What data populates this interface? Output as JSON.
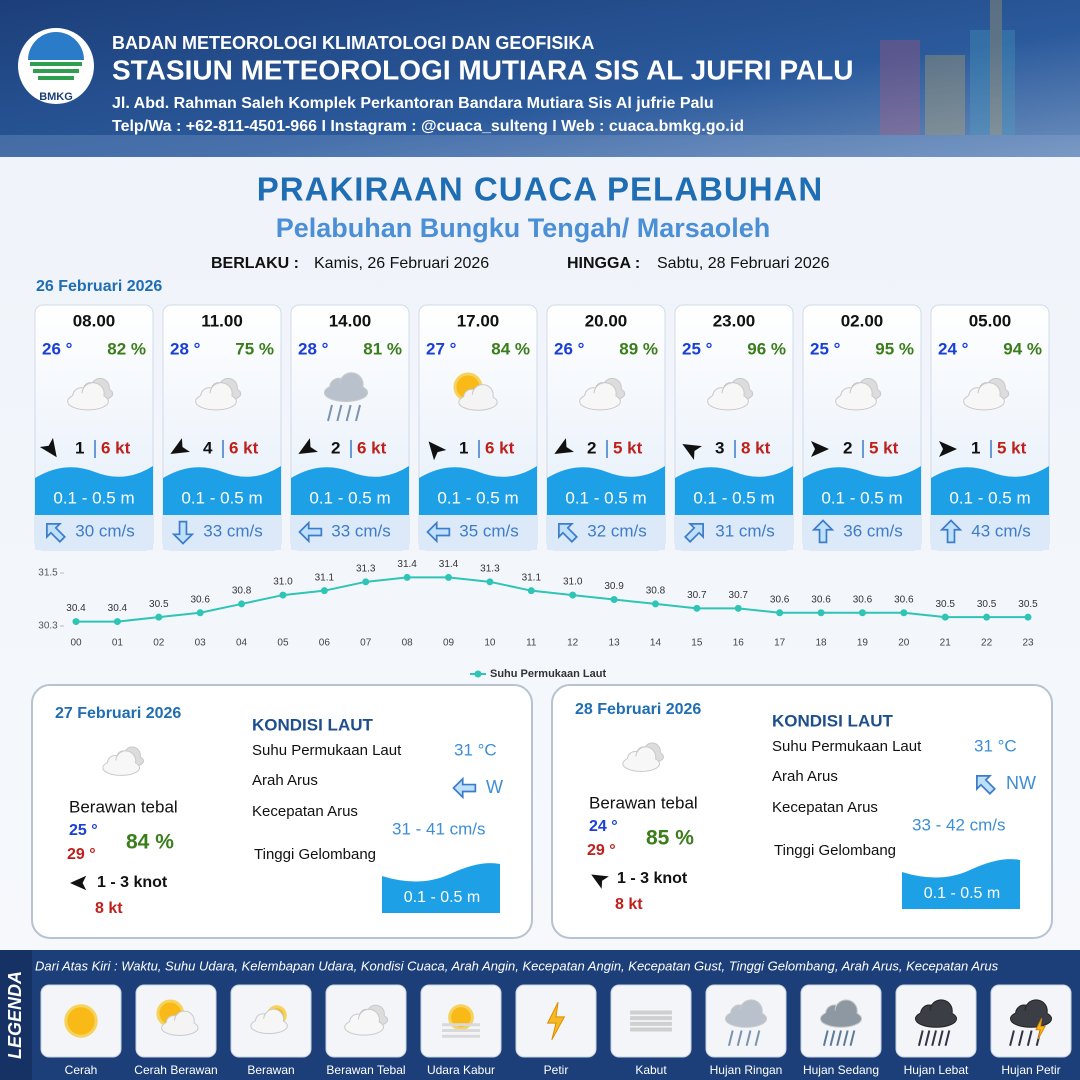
{
  "header": {
    "logo": "BMKG",
    "agency": "BADAN METEOROLOGI KLIMATOLOGI DAN GEOFISIKA",
    "station": "STASIUN METEOROLOGI MUTIARA SIS AL JUFRI PALU",
    "address": "Jl. Abd. Rahman Saleh Komplek Perkantoran Bandara Mutiara Sis Al jufrie Palu",
    "contact": "Telp/Wa : +62-811-4501-966  I  Instagram : @cuaca_sulteng  I  Web : cuaca.bmkg.go.id"
  },
  "title": "PRAKIRAAN CUACA PELABUHAN",
  "subtitle": "Pelabuhan Bungku Tengah/ Marsaoleh",
  "validity": {
    "from_label": "BERLAKU :",
    "from": "Kamis, 26 Februari 2026",
    "to_label": "HINGGA :",
    "to": "Sabtu, 28 Februari 2026"
  },
  "day1": {
    "date": "26 Februari 2026",
    "slots": [
      {
        "time": "08.00",
        "temp": "26 °",
        "humidity": "82 %",
        "wind": "1",
        "gust": "6 kt",
        "wave": "0.1 - 0.5 m",
        "current": "30 cm/s"
      },
      {
        "time": "11.00",
        "temp": "28 °",
        "humidity": "75 %",
        "wind": "4",
        "gust": "6 kt",
        "wave": "0.1 - 0.5 m",
        "current": "33 cm/s"
      },
      {
        "time": "14.00",
        "temp": "28 °",
        "humidity": "81 %",
        "wind": "2",
        "gust": "6 kt",
        "wave": "0.1 - 0.5 m",
        "current": "33 cm/s"
      },
      {
        "time": "17.00",
        "temp": "27 °",
        "humidity": "84 %",
        "wind": "1",
        "gust": "6 kt",
        "wave": "0.1 - 0.5 m",
        "current": "35 cm/s"
      },
      {
        "time": "20.00",
        "temp": "26 °",
        "humidity": "89 %",
        "wind": "2",
        "gust": "5 kt",
        "wave": "0.1 - 0.5 m",
        "current": "32 cm/s"
      },
      {
        "time": "23.00",
        "temp": "25 °",
        "humidity": "96 %",
        "wind": "3",
        "gust": "8 kt",
        "wave": "0.1 - 0.5 m",
        "current": "31 cm/s"
      },
      {
        "time": "02.00",
        "temp": "25 °",
        "humidity": "95 %",
        "wind": "2",
        "gust": "5 kt",
        "wave": "0.1 - 0.5 m",
        "current": "36 cm/s"
      },
      {
        "time": "05.00",
        "temp": "24 °",
        "humidity": "94 %",
        "wind": "1",
        "gust": "5 kt",
        "wave": "0.1 - 0.5 m",
        "current": "43 cm/s"
      }
    ]
  },
  "chart_data": {
    "type": "line",
    "categories": [
      "00",
      "01",
      "02",
      "03",
      "04",
      "05",
      "06",
      "07",
      "08",
      "09",
      "10",
      "11",
      "12",
      "13",
      "14",
      "15",
      "16",
      "17",
      "18",
      "19",
      "20",
      "21",
      "22",
      "23"
    ],
    "series": [
      {
        "name": "Suhu Permukaan Laut",
        "color": "#2ec4b6",
        "values": [
          30.4,
          30.4,
          30.5,
          30.6,
          30.8,
          31.0,
          31.1,
          31.3,
          31.4,
          31.4,
          31.3,
          31.1,
          31.0,
          30.9,
          30.8,
          30.7,
          30.7,
          30.6,
          30.6,
          30.6,
          30.6,
          30.5,
          30.5,
          30.5
        ],
        "value_labels": [
          "30.4",
          "30.4",
          "30.5",
          "30.6",
          "30.8",
          "31.0",
          "31.1",
          "31.3",
          "31.4",
          "31.4",
          "31.3",
          "31.1",
          "31.0",
          "30.9",
          "30.8",
          "30.7",
          "30.7",
          "30.6",
          "30.6",
          "30.6",
          "30.6",
          "30.5",
          "30.5",
          "30.5"
        ]
      }
    ],
    "ylim": [
      30.3,
      31.5
    ],
    "yticks": [
      30.3,
      31.5
    ],
    "legend": "bottom"
  },
  "days": [
    {
      "date": "27 Februari 2026",
      "condition": "Berawan tebal",
      "temp_min": "25 °",
      "temp_max": "29 °",
      "humidity": "84 %",
      "wind": "1 - 3 knot",
      "gust": "8 kt",
      "section": "KONDISI LAUT",
      "sst_label": "Suhu Permukaan Laut",
      "sst": "31 °C",
      "dir_label": "Arah Arus",
      "dir": "W",
      "speed_label": "Kecepatan Arus",
      "speed": "31 - 41 cm/s",
      "wave_label": "Tinggi Gelombang",
      "wave": "0.1 - 0.5 m"
    },
    {
      "date": "28 Februari 2026",
      "condition": "Berawan tebal",
      "temp_min": "24 °",
      "temp_max": "29 °",
      "humidity": "85 %",
      "wind": "1 - 3 knot",
      "gust": "8 kt",
      "section": "KONDISI LAUT",
      "sst_label": "Suhu Permukaan Laut",
      "sst": "31 °C",
      "dir_label": "Arah Arus",
      "dir": "NW",
      "speed_label": "Kecepatan Arus",
      "speed": "33 - 42 cm/s",
      "wave_label": "Tinggi Gelombang",
      "wave": "0.1 - 0.5 m"
    }
  ],
  "legend": {
    "title": "LEGENDA",
    "description": "Dari Atas Kiri : Waktu, Suhu Udara, Kelembapan Udara, Kondisi Cuaca, Arah Angin, Kecepatan Angin, Kecepatan Gust, Tinggi Gelombang, Arah Arus, Kecepatan Arus",
    "items": [
      "Cerah",
      "Cerah Berawan",
      "Berawan",
      "Berawan Tebal",
      "Udara Kabur",
      "Petir",
      "Kabut",
      "Hujan Ringan",
      "Hujan Sedang",
      "Hujan Lebat",
      "Hujan Petir"
    ]
  }
}
